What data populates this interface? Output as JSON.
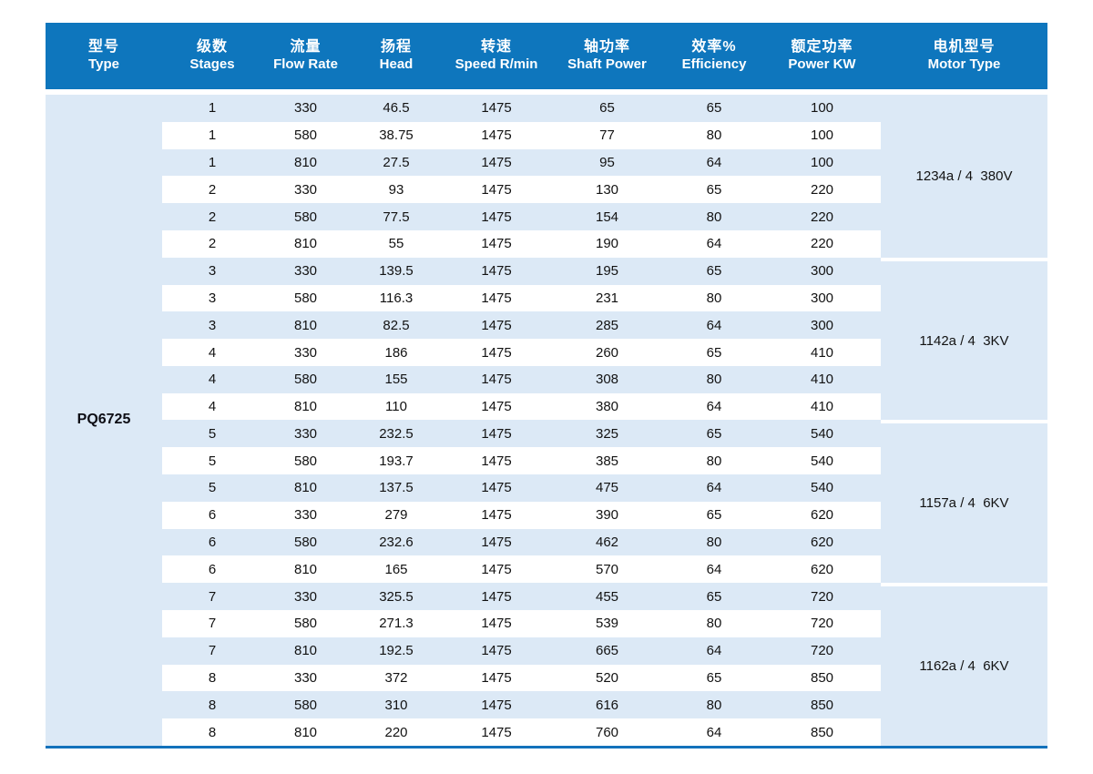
{
  "table": {
    "header": {
      "columns": [
        {
          "cn": "型号",
          "en": "Type"
        },
        {
          "cn": "级数",
          "en": "Stages"
        },
        {
          "cn": "流量",
          "en": "Flow Rate"
        },
        {
          "cn": "扬程",
          "en": "Head"
        },
        {
          "cn": "转速",
          "en": "Speed R/min"
        },
        {
          "cn": "轴功率",
          "en": "Shaft Power"
        },
        {
          "cn": "效率%",
          "en": "Efficiency"
        },
        {
          "cn": "额定功率",
          "en": "Power KW"
        },
        {
          "cn": "电机型号",
          "en": "Motor Type"
        }
      ]
    },
    "type_label": "PQ6725",
    "groups": [
      {
        "motor_type": "1234a / 4  380V",
        "rows": [
          [
            "1",
            "330",
            "46.5",
            "1475",
            "65",
            "65",
            "100"
          ],
          [
            "1",
            "580",
            "38.75",
            "1475",
            "77",
            "80",
            "100"
          ],
          [
            "1",
            "810",
            "27.5",
            "1475",
            "95",
            "64",
            "100"
          ],
          [
            "2",
            "330",
            "93",
            "1475",
            "130",
            "65",
            "220"
          ],
          [
            "2",
            "580",
            "77.5",
            "1475",
            "154",
            "80",
            "220"
          ],
          [
            "2",
            "810",
            "55",
            "1475",
            "190",
            "64",
            "220"
          ]
        ]
      },
      {
        "motor_type": "1142a / 4  3KV",
        "rows": [
          [
            "3",
            "330",
            "139.5",
            "1475",
            "195",
            "65",
            "300"
          ],
          [
            "3",
            "580",
            "116.3",
            "1475",
            "231",
            "80",
            "300"
          ],
          [
            "3",
            "810",
            "82.5",
            "1475",
            "285",
            "64",
            "300"
          ],
          [
            "4",
            "330",
            "186",
            "1475",
            "260",
            "65",
            "410"
          ],
          [
            "4",
            "580",
            "155",
            "1475",
            "308",
            "80",
            "410"
          ],
          [
            "4",
            "810",
            "110",
            "1475",
            "380",
            "64",
            "410"
          ]
        ]
      },
      {
        "motor_type": "1157a / 4  6KV",
        "rows": [
          [
            "5",
            "330",
            "232.5",
            "1475",
            "325",
            "65",
            "540"
          ],
          [
            "5",
            "580",
            "193.7",
            "1475",
            "385",
            "80",
            "540"
          ],
          [
            "5",
            "810",
            "137.5",
            "1475",
            "475",
            "64",
            "540"
          ],
          [
            "6",
            "330",
            "279",
            "1475",
            "390",
            "65",
            "620"
          ],
          [
            "6",
            "580",
            "232.6",
            "1475",
            "462",
            "80",
            "620"
          ],
          [
            "6",
            "810",
            "165",
            "1475",
            "570",
            "64",
            "620"
          ]
        ]
      },
      {
        "motor_type": "1162a / 4  6KV",
        "rows": [
          [
            "7",
            "330",
            "325.5",
            "1475",
            "455",
            "65",
            "720"
          ],
          [
            "7",
            "580",
            "271.3",
            "1475",
            "539",
            "80",
            "720"
          ],
          [
            "7",
            "810",
            "192.5",
            "1475",
            "665",
            "64",
            "720"
          ],
          [
            "8",
            "330",
            "372",
            "1475",
            "520",
            "65",
            "850"
          ],
          [
            "8",
            "580",
            "310",
            "1475",
            "616",
            "80",
            "850"
          ],
          [
            "8",
            "810",
            "220",
            "1475",
            "760",
            "64",
            "850"
          ]
        ]
      }
    ],
    "colors": {
      "header_bg": "#0e76bd",
      "stripe": "#dce9f6",
      "bottom_line": "#1272bb",
      "header_text": "#ffffff",
      "body_text": "#121212"
    }
  }
}
